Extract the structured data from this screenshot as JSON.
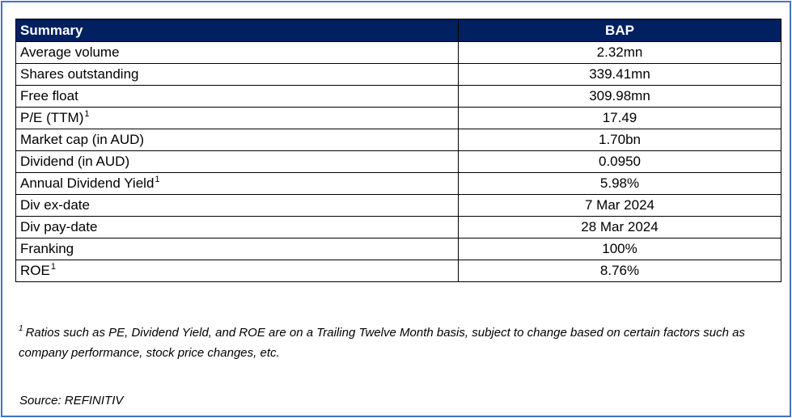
{
  "table": {
    "header": {
      "label": "Summary",
      "value": "BAP"
    },
    "rows": [
      {
        "label": "Average volume",
        "footnote": "",
        "value": "2.32mn"
      },
      {
        "label": "Shares outstanding",
        "footnote": "",
        "value": "339.41mn"
      },
      {
        "label": "Free float",
        "footnote": "",
        "value": "309.98mn"
      },
      {
        "label": "P/E (TTM)",
        "footnote": "1",
        "value": "17.49"
      },
      {
        "label": "Market cap (in AUD)",
        "footnote": "",
        "value": "1.70bn"
      },
      {
        "label": "Dividend (in AUD)",
        "footnote": "",
        "value": "0.0950"
      },
      {
        "label": "Annual Dividend Yield",
        "footnote": "1",
        "value": "5.98%"
      },
      {
        "label": "Div ex-date",
        "footnote": "",
        "value": "7 Mar 2024"
      },
      {
        "label": "Div pay-date",
        "footnote": "",
        "value": "28 Mar 2024"
      },
      {
        "label": "Franking",
        "footnote": "",
        "value": "100%"
      },
      {
        "label": "ROE",
        "footnote": "1",
        "value": "8.76%"
      }
    ]
  },
  "footnote": {
    "marker": "1",
    "text": "Ratios such as PE, Dividend Yield, and ROE are on a Trailing Twelve Month basis, subject to change based on certain factors such as company performance, stock price changes, etc."
  },
  "source": "Source: REFINITIV",
  "colors": {
    "header_background": "#002060",
    "header_text": "#ffffff",
    "frame_border": "#4472c4"
  }
}
